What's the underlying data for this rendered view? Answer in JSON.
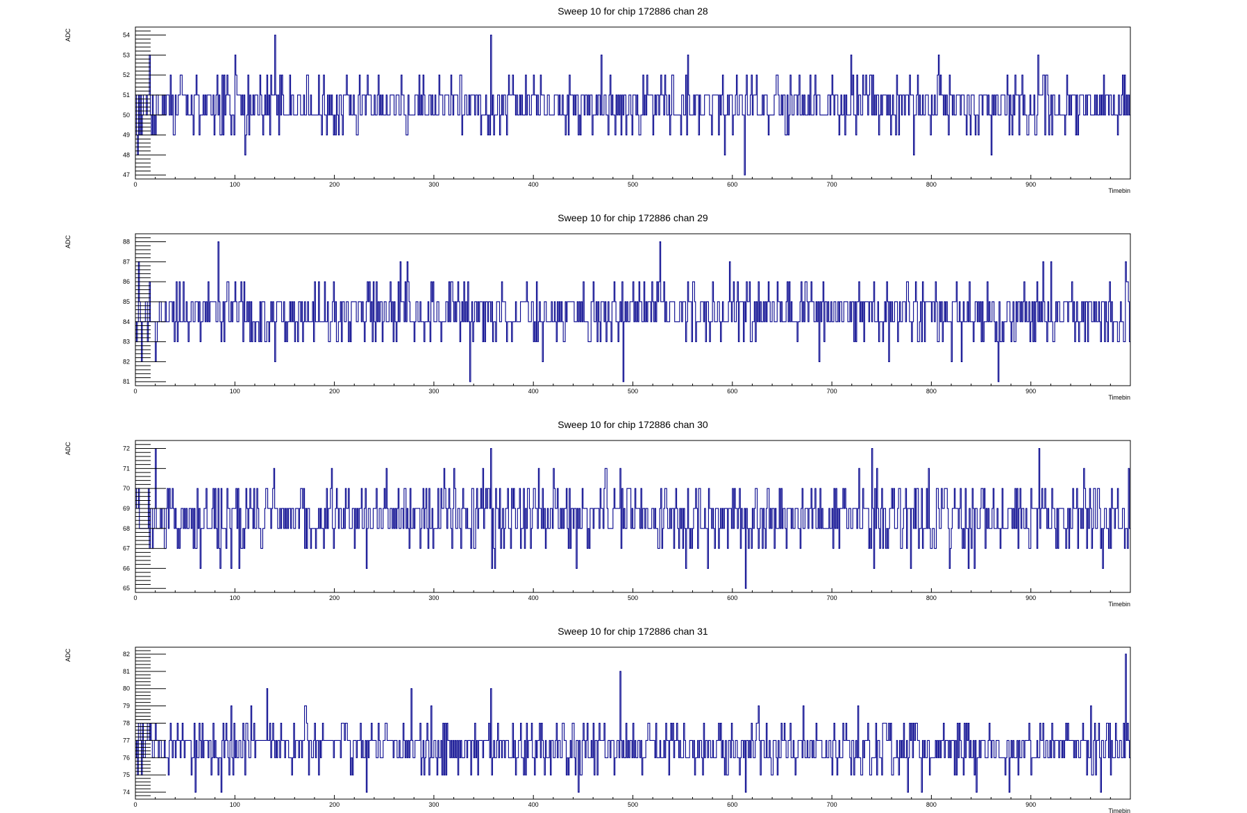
{
  "chart_data": [
    {
      "type": "line",
      "title": "Sweep 10 for chip 172886 chan 28",
      "xlabel": "Timebin",
      "ylabel": "ADC",
      "xlim": [
        0,
        1000
      ],
      "ylim": [
        46.8,
        54.4
      ],
      "x_ticks": [
        0,
        100,
        200,
        300,
        400,
        500,
        600,
        700,
        800,
        900
      ],
      "y_ticks": [
        47,
        48,
        49,
        50,
        51,
        52,
        53,
        54
      ],
      "grid": false,
      "series": [
        {
          "color": "#00008b",
          "x_start": 0,
          "x_step": 1,
          "baseline": 50.5,
          "spread": 0.7,
          "low": 47,
          "high": 54,
          "seed": 28,
          "spikes": [
            [
              2,
              48
            ],
            [
              11,
              50
            ],
            [
              14,
              53
            ],
            [
              18,
              49
            ],
            [
              100,
              53
            ],
            [
              110,
              48
            ],
            [
              140,
              54
            ],
            [
              225,
              52
            ],
            [
              357,
              54
            ],
            [
              468,
              53
            ],
            [
              555,
              53
            ],
            [
              592,
              48
            ],
            [
              612,
              47
            ],
            [
              719,
              53
            ],
            [
              782,
              48
            ],
            [
              807,
              53
            ],
            [
              860,
              48
            ],
            [
              907,
              53
            ]
          ]
        }
      ]
    },
    {
      "type": "line",
      "title": "Sweep 10 for chip 172886 chan 29",
      "xlabel": "Timebin",
      "ylabel": "ADC",
      "xlim": [
        0,
        1000
      ],
      "ylim": [
        80.8,
        88.4
      ],
      "x_ticks": [
        0,
        100,
        200,
        300,
        400,
        500,
        600,
        700,
        800,
        900
      ],
      "y_ticks": [
        81,
        82,
        83,
        84,
        85,
        86,
        87,
        88
      ],
      "grid": false,
      "series": [
        {
          "color": "#00008b",
          "x_start": 0,
          "x_step": 1,
          "baseline": 84.4,
          "spread": 0.8,
          "low": 81,
          "high": 88,
          "seed": 29,
          "spikes": [
            [
              3,
              87
            ],
            [
              6,
              82
            ],
            [
              14,
              86
            ],
            [
              20,
              82
            ],
            [
              83,
              88
            ],
            [
              140,
              82
            ],
            [
              266,
              87
            ],
            [
              273,
              87
            ],
            [
              336,
              81
            ],
            [
              490,
              81
            ],
            [
              527,
              88
            ],
            [
              597,
              87
            ],
            [
              830,
              82
            ],
            [
              867,
              81
            ],
            [
              912,
              87
            ],
            [
              920,
              87
            ],
            [
              995,
              87
            ]
          ]
        }
      ]
    },
    {
      "type": "line",
      "title": "Sweep 10 for chip 172886 chan 30",
      "xlabel": "Timebin",
      "ylabel": "ADC",
      "xlim": [
        0,
        1000
      ],
      "ylim": [
        64.8,
        72.4
      ],
      "x_ticks": [
        0,
        100,
        200,
        300,
        400,
        500,
        600,
        700,
        800,
        900
      ],
      "y_ticks": [
        65,
        66,
        67,
        68,
        69,
        70,
        71,
        72
      ],
      "grid": false,
      "series": [
        {
          "color": "#00008b",
          "x_start": 0,
          "x_step": 1,
          "baseline": 68.6,
          "spread": 0.9,
          "low": 65,
          "high": 72,
          "seed": 30,
          "spikes": [
            [
              20,
              72
            ],
            [
              85,
              66
            ],
            [
              104,
              66
            ],
            [
              232,
              66
            ],
            [
              357,
              72
            ],
            [
              361,
              66
            ],
            [
              443,
              66
            ],
            [
              553,
              66
            ],
            [
              613,
              65
            ],
            [
              740,
              72
            ],
            [
              742,
              66
            ],
            [
              779,
              66
            ],
            [
              843,
              66
            ],
            [
              908,
              72
            ],
            [
              972,
              66
            ],
            [
              998,
              71
            ]
          ]
        }
      ]
    },
    {
      "type": "line",
      "title": "Sweep 10 for chip 172886 chan 31",
      "xlabel": "Timebin",
      "ylabel": "ADC",
      "xlim": [
        0,
        1000
      ],
      "ylim": [
        73.6,
        82.4
      ],
      "x_ticks": [
        0,
        100,
        200,
        300,
        400,
        500,
        600,
        700,
        800,
        900
      ],
      "y_ticks": [
        74,
        75,
        76,
        77,
        78,
        79,
        80,
        81,
        82
      ],
      "grid": false,
      "series": [
        {
          "color": "#00008b",
          "x_start": 0,
          "x_step": 1,
          "baseline": 76.7,
          "spread": 0.8,
          "low": 74,
          "high": 82,
          "seed": 31,
          "spikes": [
            [
              3,
              78
            ],
            [
              60,
              74
            ],
            [
              86,
              74
            ],
            [
              132,
              80
            ],
            [
              232,
              74
            ],
            [
              277,
              80
            ],
            [
              357,
              80
            ],
            [
              445,
              74
            ],
            [
              487,
              81
            ],
            [
              613,
              74
            ],
            [
              776,
              74
            ],
            [
              790,
              74
            ],
            [
              845,
              74
            ],
            [
              878,
              74
            ],
            [
              970,
              74
            ],
            [
              995,
              82
            ]
          ]
        }
      ]
    }
  ]
}
